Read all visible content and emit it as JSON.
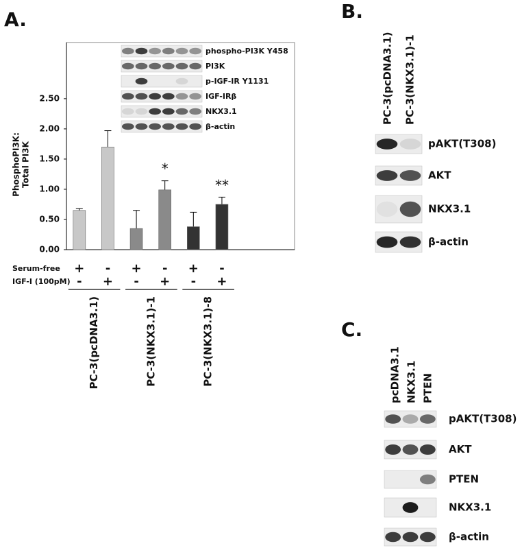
{
  "chart_data": {
    "type": "bar",
    "ylabel": [
      "PhosphoPI3K:",
      "Total PI3K"
    ],
    "values": [
      0.65,
      1.7,
      0.35,
      0.99,
      0.38,
      0.75
    ],
    "errors": [
      0.03,
      0.27,
      0.3,
      0.15,
      0.24,
      0.12
    ],
    "colors": [
      "#c8c8c8",
      "#c8c8c8",
      "#8a8a8a",
      "#8a8a8a",
      "#333333",
      "#333333"
    ],
    "annotations": [
      null,
      null,
      null,
      "*",
      null,
      "**"
    ],
    "ylim": [
      0,
      3.43
    ],
    "yticks": [
      {
        "value": 0,
        "label": "0.00"
      },
      {
        "value": 0.5,
        "label": "0.50"
      },
      {
        "value": 1,
        "label": "1.00"
      },
      {
        "value": 1.5,
        "label": "1.50"
      },
      {
        "value": 2,
        "label": "2.00"
      },
      {
        "value": 2.5,
        "label": "2.50"
      }
    ],
    "treatments": [
      {
        "name": "Serum-free",
        "marks": [
          "+",
          "-",
          "+",
          "-",
          "+",
          "-"
        ]
      },
      {
        "name": "IGF-I (100pM)",
        "marks": [
          "-",
          "+",
          "-",
          "+",
          "-",
          "+"
        ]
      }
    ],
    "groups": [
      "PC-3(pcDNA3.1)",
      "PC-3(NKX3.1)-1",
      "PC-3(NKX3.1)-8"
    ],
    "inset_blots": [
      "phospho-PI3K Y458",
      "PI3K",
      "p-IGF-IR Y1131",
      "IGF-IRβ",
      "NKX3.1",
      "β-actin"
    ]
  },
  "panels": {
    "a": {
      "label": "A."
    },
    "b": {
      "label": "B.",
      "lanes": [
        "PC-3(pcDNA3.1)",
        "PC-3(NKX3.1)-1"
      ],
      "blots": [
        "pAKT(T308)",
        "AKT",
        "NKX3.1",
        "β-actin"
      ]
    },
    "c": {
      "label": "C.",
      "lanes": [
        "pcDNA3.1",
        "NKX3.1",
        "PTEN"
      ],
      "blots": [
        "pAKT(T308)",
        "AKT",
        "PTEN",
        "NKX3.1",
        "β-actin"
      ]
    }
  }
}
